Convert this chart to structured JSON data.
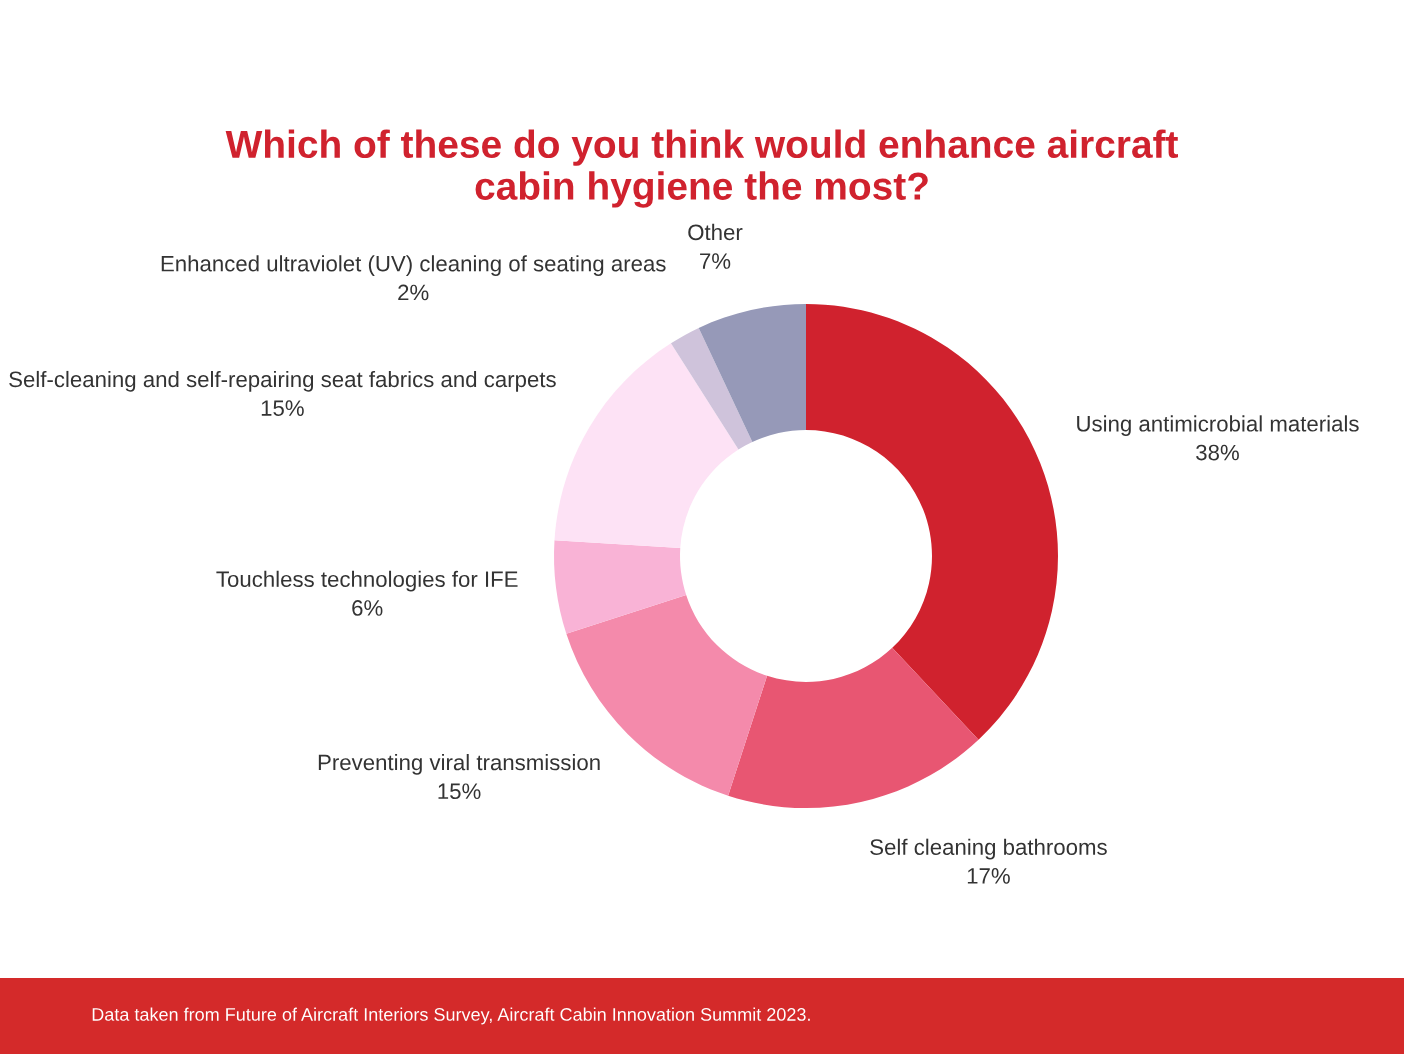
{
  "chart_data": {
    "type": "donut",
    "title": "Which of these do you think would enhance aircraft\ncabin hygiene the most?",
    "categories": [
      "Using antimicrobial materials",
      "Self cleaning bathrooms",
      "Preventing viral transmission",
      "Touchless technologies for IFE",
      "Self-cleaning and self-repairing seat fabrics and carpets",
      "Enhanced ultraviolet (UV) cleaning of seating areas",
      "Other"
    ],
    "values": [
      38,
      17,
      15,
      6,
      15,
      2,
      7
    ],
    "value_labels": [
      "38%",
      "17%",
      "15%",
      "6%",
      "15%",
      "2%",
      "7%"
    ],
    "colors": [
      "#d0222e",
      "#e85672",
      "#f48aab",
      "#f9b3d6",
      "#fde2f5",
      "#cfc3db",
      "#9699b8"
    ],
    "legend": false,
    "annotations": [
      "Data taken from Future of Aircraft Interiors Survey, Aircraft Cabin Innovation Summit 2023."
    ]
  }
}
